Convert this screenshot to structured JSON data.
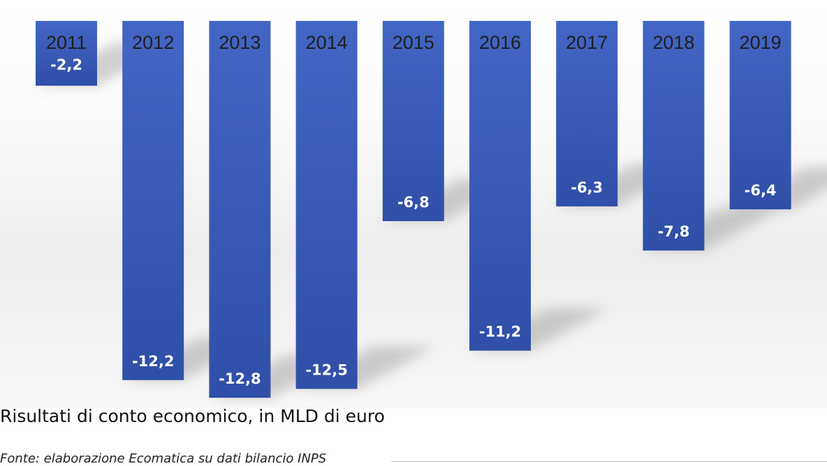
{
  "chart_data": {
    "type": "bar",
    "categories": [
      "2011",
      "2012",
      "2013",
      "2014",
      "2015",
      "2016",
      "2017",
      "2018",
      "2019"
    ],
    "values": [
      -2.2,
      -12.2,
      -12.8,
      -12.5,
      -6.8,
      -11.2,
      -6.3,
      -7.8,
      -6.4
    ],
    "value_labels": [
      "-2,2",
      "-12,2",
      "-12,8",
      "-12,5",
      "-6,8",
      "-11,2",
      "-6,3",
      "-7,8",
      "-6,4"
    ],
    "ylim": [
      -13,
      0
    ],
    "bar_color": "#4366c4",
    "bar_color_dark": "#2f4fa8",
    "title": "",
    "xlabel": "",
    "ylabel": ""
  },
  "caption": "Risultati di conto economico, in MLD di euro",
  "source": "Fonte: elaborazione Ecomatica su dati bilancio INPS"
}
